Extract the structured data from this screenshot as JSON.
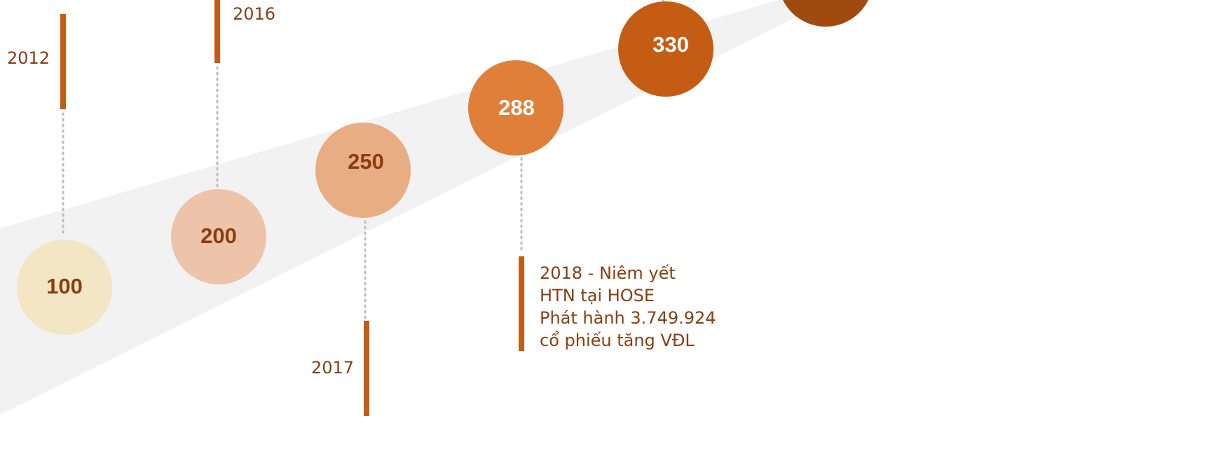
{
  "nodes": [
    {
      "value": "100",
      "year": "2012"
    },
    {
      "value": "200",
      "year": "2016"
    },
    {
      "value": "250",
      "year": "2017"
    },
    {
      "value": "288",
      "lines": [
        "2018 - Niêm yết",
        "HTN tại HOSE",
        "Phát hành 3.749.924",
        "cổ phiếu tăng VĐL"
      ]
    },
    {
      "value": "330"
    }
  ]
}
